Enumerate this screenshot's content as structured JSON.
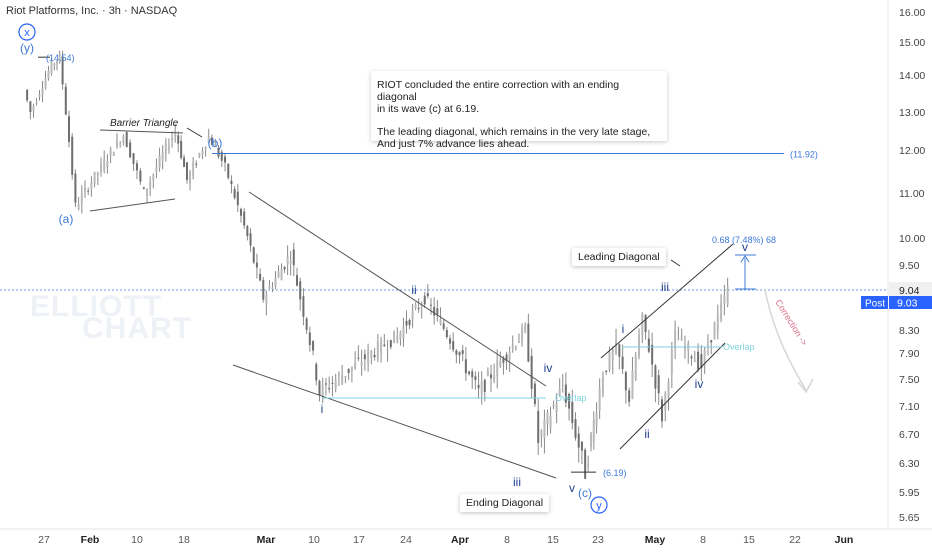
{
  "header": {
    "title": "Riot Platforms, Inc. · 3h · NASDAQ"
  },
  "note": {
    "line1": "RIOT concluded the entire correction with an ending diagonal\n in its wave (c) at 6.19.",
    "line2": "The leading diagonal, which remains in the very late stage,\n And just 7% advance lies ahead."
  },
  "watermark": {
    "line1": "ELLIOTT",
    "line2": "CHART"
  },
  "labels": {
    "barrier_triangle": "Barrier Triangle",
    "leading_diagonal": "Leading Diagonal",
    "ending_diagonal": "Ending Diagonal",
    "overlap_left": "Overlap",
    "overlap_right": "Overlap",
    "correction": "Correction ->",
    "fib_target": "0.68 (7.48%) 68"
  },
  "price_axis": {
    "ticks": [
      "16.00",
      "15.00",
      "14.00",
      "13.00",
      "12.00",
      "11.00",
      "10.00",
      "9.50",
      "9.04",
      "8.30",
      "7.90",
      "7.50",
      "7.10",
      "6.70",
      "6.30",
      "5.95",
      "5.65"
    ],
    "current_label": "9.04",
    "post_label": "Post",
    "post_value": "9.03"
  },
  "time_axis": {
    "ticks": [
      "27",
      "Feb",
      "10",
      "18",
      "Mar",
      "10",
      "17",
      "24",
      "Apr",
      "8",
      "15",
      "23",
      "May",
      "8",
      "15",
      "22",
      "Jun"
    ]
  },
  "colors": {
    "wave_blue": "#2962ff",
    "level_blue": "#3c78d8",
    "overlap_cyan": "#7fd3e0",
    "candle": "#8a8a8a",
    "correction": "#d9708a"
  },
  "chart_data": {
    "type": "line",
    "title": "Riot Platforms, Inc. · 3h · NASDAQ",
    "ylim": [
      5.5,
      16.3
    ],
    "y_scale": "nonlinear",
    "x": [
      "Jan 27",
      "Feb",
      "Feb 10",
      "Feb 18",
      "Mar",
      "Mar 10",
      "Mar 17",
      "Mar 24",
      "Apr",
      "Apr 8",
      "Apr 15",
      "Apr 23",
      "May",
      "May 8",
      "May 15",
      "May 22",
      "Jun"
    ],
    "price_path": [
      {
        "d": "Jan 24",
        "p": 13.6
      },
      {
        "d": "Jan 25",
        "p": 13.0
      },
      {
        "d": "Jan 28",
        "p": 14.3
      },
      {
        "d": "Jan 29",
        "p": 14.54
      },
      {
        "d": "Jan 31",
        "p": 10.7
      },
      {
        "d": "Feb 6",
        "p": 12.4
      },
      {
        "d": "Feb 9",
        "p": 11.0
      },
      {
        "d": "Feb 14",
        "p": 12.5
      },
      {
        "d": "Feb 16",
        "p": 11.3
      },
      {
        "d": "Feb 20",
        "p": 12.35
      },
      {
        "d": "Feb 23",
        "p": 11.6
      },
      {
        "d": "Mar 1",
        "p": 8.9
      },
      {
        "d": "Mar 6",
        "p": 9.7
      },
      {
        "d": "Mar 11",
        "p": 7.3
      },
      {
        "d": "Mar 22",
        "p": 8.2
      },
      {
        "d": "Mar 26",
        "p": 8.9
      },
      {
        "d": "Apr 3",
        "p": 7.3
      },
      {
        "d": "Apr 10",
        "p": 8.3
      },
      {
        "d": "Apr 12",
        "p": 6.6
      },
      {
        "d": "Apr 16",
        "p": 7.4
      },
      {
        "d": "Apr 20",
        "p": 6.19
      },
      {
        "d": "Apr 22",
        "p": 7.1
      },
      {
        "d": "Apr 23",
        "p": 7.6
      },
      {
        "d": "Apr 25",
        "p": 8.0
      },
      {
        "d": "Apr 27",
        "p": 7.2
      },
      {
        "d": "Apr 29",
        "p": 8.5
      },
      {
        "d": "May 2",
        "p": 6.95
      },
      {
        "d": "May 4",
        "p": 8.2
      },
      {
        "d": "May 8",
        "p": 7.7
      },
      {
        "d": "May 12",
        "p": 9.04
      }
    ],
    "levels": [
      {
        "label": "(14.54)",
        "price": 14.54
      },
      {
        "label": "(11.92)",
        "price": 11.92
      },
      {
        "label": "(6.19)",
        "price": 6.19
      },
      {
        "label": "9.04",
        "price": 9.04
      }
    ],
    "annotations": [
      {
        "text": "x",
        "kind": "circled"
      },
      {
        "text": "(y)"
      },
      {
        "text": "(a)"
      },
      {
        "text": "(b)"
      },
      {
        "text": "(c)"
      },
      {
        "text": "y",
        "kind": "circled"
      },
      {
        "text": "i"
      },
      {
        "text": "ii"
      },
      {
        "text": "iii"
      },
      {
        "text": "iv"
      },
      {
        "text": "v"
      },
      {
        "text": "i"
      },
      {
        "text": "ii"
      },
      {
        "text": "iii"
      },
      {
        "text": "iv"
      },
      {
        "text": "v"
      }
    ]
  }
}
